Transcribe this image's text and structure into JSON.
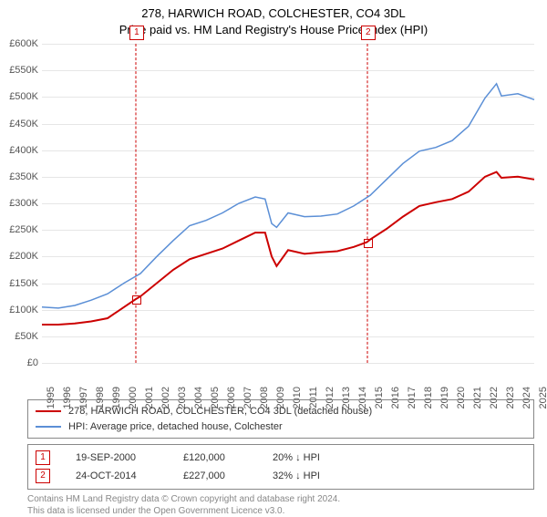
{
  "title_line1": "278, HARWICH ROAD, COLCHESTER, CO4 3DL",
  "title_line2": "Price paid vs. HM Land Registry's House Price Index (HPI)",
  "chart": {
    "type": "line",
    "background_color": "#ffffff",
    "grid_color": "#e6e6e6",
    "x": {
      "min": 1995,
      "max": 2025,
      "ticks": [
        1995,
        1996,
        1997,
        1998,
        1999,
        2000,
        2001,
        2002,
        2003,
        2004,
        2005,
        2006,
        2007,
        2008,
        2009,
        2010,
        2011,
        2012,
        2013,
        2014,
        2015,
        2016,
        2017,
        2018,
        2019,
        2020,
        2021,
        2022,
        2023,
        2024,
        2025
      ]
    },
    "y": {
      "min": 0,
      "max": 600000,
      "tick_step": 50000,
      "tick_prefix": "£",
      "tick_suffix": "K"
    },
    "series": [
      {
        "name": "278, HARWICH ROAD, COLCHESTER, CO4 3DL (detached house)",
        "color": "#cc0000",
        "line_width": 2,
        "data": [
          [
            1995.0,
            72000
          ],
          [
            1996.0,
            72000
          ],
          [
            1997.0,
            74000
          ],
          [
            1998.0,
            78000
          ],
          [
            1999.0,
            84000
          ],
          [
            2000.0,
            105000
          ],
          [
            2000.72,
            120000
          ],
          [
            2001.0,
            125000
          ],
          [
            2002.0,
            150000
          ],
          [
            2003.0,
            175000
          ],
          [
            2004.0,
            195000
          ],
          [
            2005.0,
            205000
          ],
          [
            2006.0,
            215000
          ],
          [
            2007.0,
            230000
          ],
          [
            2008.0,
            245000
          ],
          [
            2008.6,
            245000
          ],
          [
            2009.0,
            200000
          ],
          [
            2009.3,
            182000
          ],
          [
            2010.0,
            212000
          ],
          [
            2011.0,
            205000
          ],
          [
            2012.0,
            208000
          ],
          [
            2013.0,
            210000
          ],
          [
            2014.0,
            218000
          ],
          [
            2014.8,
            227000
          ],
          [
            2015.0,
            232000
          ],
          [
            2016.0,
            252000
          ],
          [
            2017.0,
            275000
          ],
          [
            2018.0,
            295000
          ],
          [
            2019.0,
            302000
          ],
          [
            2020.0,
            308000
          ],
          [
            2021.0,
            322000
          ],
          [
            2022.0,
            350000
          ],
          [
            2022.7,
            359000
          ],
          [
            2023.0,
            348000
          ],
          [
            2024.0,
            350000
          ],
          [
            2025.0,
            345000
          ]
        ]
      },
      {
        "name": "HPI: Average price, detached house, Colchester",
        "color": "#5b8fd6",
        "line_width": 1.5,
        "data": [
          [
            1995.0,
            105000
          ],
          [
            1996.0,
            103000
          ],
          [
            1997.0,
            108000
          ],
          [
            1998.0,
            118000
          ],
          [
            1999.0,
            130000
          ],
          [
            2000.0,
            150000
          ],
          [
            2001.0,
            168000
          ],
          [
            2002.0,
            200000
          ],
          [
            2003.0,
            230000
          ],
          [
            2004.0,
            258000
          ],
          [
            2005.0,
            268000
          ],
          [
            2006.0,
            282000
          ],
          [
            2007.0,
            300000
          ],
          [
            2008.0,
            312000
          ],
          [
            2008.6,
            308000
          ],
          [
            2009.0,
            262000
          ],
          [
            2009.3,
            255000
          ],
          [
            2010.0,
            282000
          ],
          [
            2011.0,
            275000
          ],
          [
            2012.0,
            276000
          ],
          [
            2013.0,
            280000
          ],
          [
            2014.0,
            295000
          ],
          [
            2015.0,
            315000
          ],
          [
            2016.0,
            345000
          ],
          [
            2017.0,
            375000
          ],
          [
            2018.0,
            398000
          ],
          [
            2019.0,
            405000
          ],
          [
            2020.0,
            418000
          ],
          [
            2021.0,
            445000
          ],
          [
            2022.0,
            498000
          ],
          [
            2022.7,
            525000
          ],
          [
            2023.0,
            502000
          ],
          [
            2024.0,
            506000
          ],
          [
            2025.0,
            495000
          ]
        ]
      }
    ],
    "markers": [
      {
        "n": "1",
        "x": 2000.72,
        "y": 120000,
        "color": "#cc0000"
      },
      {
        "n": "2",
        "x": 2014.82,
        "y": 227000,
        "color": "#cc0000"
      }
    ],
    "label_fontsize": 11,
    "title_fontsize": 13
  },
  "legend": {
    "border_color": "#888888",
    "items": [
      {
        "color": "#cc0000",
        "label": "278, HARWICH ROAD, COLCHESTER, CO4 3DL (detached house)"
      },
      {
        "color": "#5b8fd6",
        "label": "HPI: Average price, detached house, Colchester"
      }
    ]
  },
  "annotations": {
    "border_color": "#888888",
    "rows": [
      {
        "n": "1",
        "date": "19-SEP-2000",
        "price": "£120,000",
        "pct": "20%",
        "arrow": "↓",
        "suffix": "HPI",
        "color": "#cc0000"
      },
      {
        "n": "2",
        "date": "24-OCT-2014",
        "price": "£227,000",
        "pct": "32%",
        "arrow": "↓",
        "suffix": "HPI",
        "color": "#cc0000"
      }
    ]
  },
  "footer_line1": "Contains HM Land Registry data © Crown copyright and database right 2024.",
  "footer_line2": "This data is licensed under the Open Government Licence v3.0."
}
